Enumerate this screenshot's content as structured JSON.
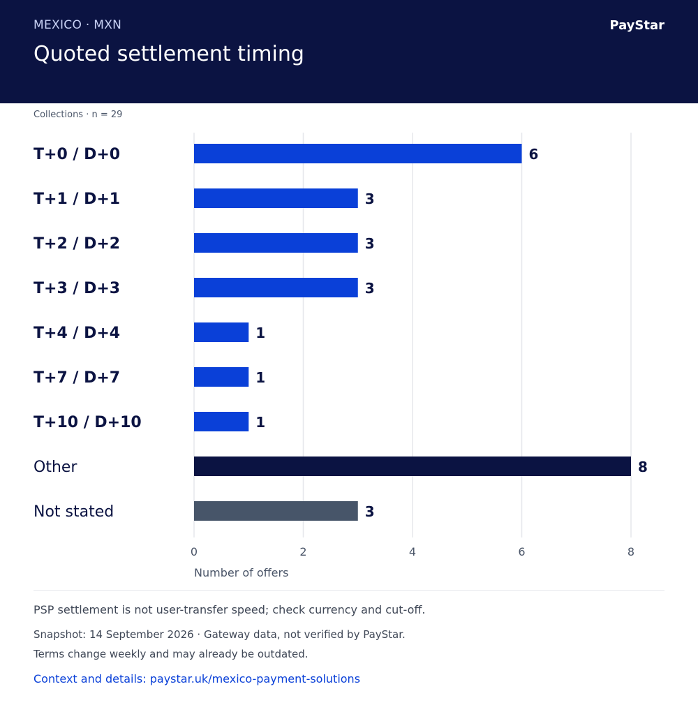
{
  "header": {
    "eyebrow": "MEXICO · MXN",
    "title": "Quoted settlement timing",
    "brand": "PayStar"
  },
  "subtitle": "Collections · n = 29",
  "footer": {
    "note": "PSP settlement is not user-transfer speed; check currency and cut-off.",
    "snapshot": "Snapshot: 14 September 2026 · Gateway data, not verified by PayStar.",
    "terms": "Terms change weekly and may already be outdated.",
    "link": "Context and details: paystar.uk/mexico-payment-solutions"
  },
  "colors": {
    "primary": "#0a40d8",
    "other": "#0b1342",
    "not_stated": "#475569",
    "grid": "#e5e7eb",
    "header_bg": "#0b1342"
  },
  "chart_data": {
    "type": "bar",
    "orientation": "horizontal",
    "categories": [
      "T+0 / D+0",
      "T+1 / D+1",
      "T+2 / D+2",
      "T+3 / D+3",
      "T+4 / D+4",
      "T+7 / D+7",
      "T+10 / D+10",
      "Other",
      "Not stated"
    ],
    "values": [
      6,
      3,
      3,
      3,
      1,
      1,
      1,
      8,
      3
    ],
    "bar_colors": [
      "#0a40d8",
      "#0a40d8",
      "#0a40d8",
      "#0a40d8",
      "#0a40d8",
      "#0a40d8",
      "#0a40d8",
      "#0b1342",
      "#475569"
    ],
    "bold_categories": [
      true,
      true,
      true,
      true,
      true,
      true,
      true,
      false,
      false
    ],
    "xlabel": "Number of offers",
    "xlim": [
      0,
      8
    ],
    "xticks": [
      0,
      2,
      4,
      6,
      8
    ],
    "grid": true,
    "data_labels": true
  }
}
